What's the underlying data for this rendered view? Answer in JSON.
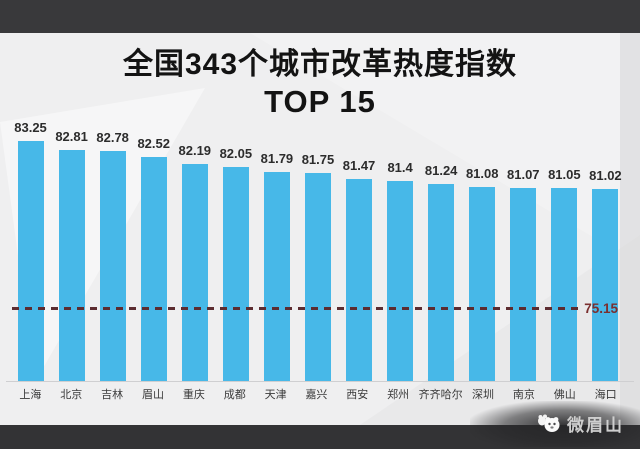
{
  "header": {
    "title_line1": "全国343个城市改革热度指数",
    "title_line2": "TOP 15"
  },
  "chart_data": {
    "type": "bar",
    "title": "全国343个城市改革热度指数 TOP 15",
    "categories": [
      "上海",
      "北京",
      "吉林",
      "眉山",
      "重庆",
      "成都",
      "天津",
      "嘉兴",
      "西安",
      "郑州",
      "齐齐哈尔",
      "深圳",
      "南京",
      "佛山",
      "海口"
    ],
    "values": [
      83.25,
      82.81,
      82.78,
      82.52,
      82.19,
      82.05,
      81.79,
      81.75,
      81.47,
      81.4,
      81.24,
      81.08,
      81.07,
      81.05,
      81.02
    ],
    "value_labels": [
      "83.25",
      "82.81",
      "82.78",
      "82.52",
      "82.19",
      "82.05",
      "81.79",
      "81.75",
      "81.47",
      "81.4",
      "81.24",
      "81.08",
      "81.07",
      "81.05",
      "81.02"
    ],
    "reference_line": {
      "value": 75.15,
      "label": "75.15"
    },
    "xlabel": "",
    "ylabel": "",
    "ylim": [
      72,
      84
    ],
    "grid": false,
    "legend": false,
    "bar_color": "#47b8e8",
    "reference_color": "#7a2f2f"
  },
  "footer": {
    "watermark": "微眉山"
  },
  "colors": {
    "background": "#efeff0",
    "letterbox": "#39393b",
    "title_text": "#131313",
    "value_text": "#2c2c2c",
    "city_text": "#3a3a3a"
  }
}
